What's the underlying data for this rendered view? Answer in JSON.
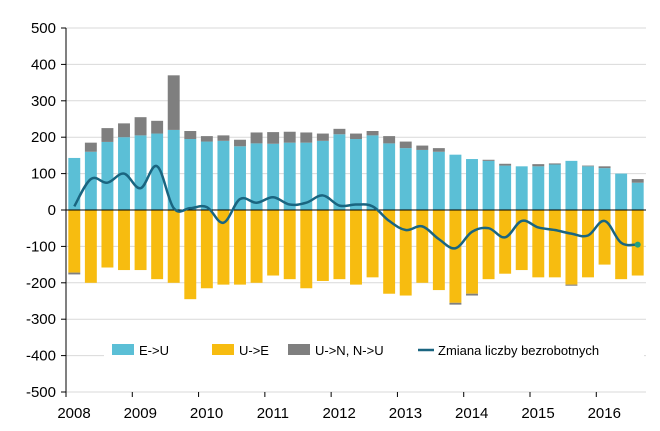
{
  "chart_data": {
    "type": "bar",
    "stacked": true,
    "x_ticks": [
      "2008",
      "2009",
      "2010",
      "2011",
      "2012",
      "2013",
      "2014",
      "2015",
      "2016"
    ],
    "y_ticks": [
      "500",
      "400",
      "300",
      "200",
      "100",
      "0",
      "-100",
      "-200",
      "-300",
      "-400",
      "-500"
    ],
    "ylim": [
      -500,
      500
    ],
    "grid": "horizontal",
    "legend_position": "bottom-inside",
    "series": [
      {
        "name": "E->U",
        "color": "#5bbfd6",
        "values": [
          143,
          160,
          187,
          200,
          205,
          210,
          220,
          195,
          188,
          190,
          175,
          183,
          182,
          185,
          185,
          190,
          208,
          195,
          205,
          183,
          170,
          165,
          160,
          152,
          140,
          135,
          122,
          120,
          120,
          125,
          135,
          120,
          115,
          100,
          75
        ]
      },
      {
        "name": "U->E",
        "color": "#f7bc10",
        "values": [
          -172,
          -200,
          -158,
          -165,
          -165,
          -190,
          -200,
          -245,
          -215,
          -205,
          -205,
          -200,
          -180,
          -190,
          -215,
          -195,
          -190,
          -205,
          -185,
          -230,
          -235,
          -200,
          -220,
          -255,
          -230,
          -190,
          -175,
          -165,
          -185,
          -185,
          -205,
          -185,
          -150,
          -190,
          -180
        ]
      },
      {
        "name": "U->N,  N->U",
        "color": "#7f7f7f",
        "values": [
          [
            0,
            -5
          ],
          [
            25,
            0
          ],
          [
            38,
            0
          ],
          [
            38,
            0
          ],
          [
            50,
            0
          ],
          [
            35,
            0
          ],
          [
            150,
            0
          ],
          [
            22,
            0
          ],
          [
            15,
            0
          ],
          [
            15,
            0
          ],
          [
            18,
            0
          ],
          [
            30,
            0
          ],
          [
            32,
            0
          ],
          [
            30,
            0
          ],
          [
            28,
            0
          ],
          [
            20,
            0
          ],
          [
            15,
            0
          ],
          [
            15,
            0
          ],
          [
            12,
            0
          ],
          [
            20,
            0
          ],
          [
            18,
            0
          ],
          [
            12,
            0
          ],
          [
            10,
            0
          ],
          [
            0,
            -5
          ],
          [
            0,
            -5
          ],
          [
            3,
            0
          ],
          [
            5,
            0
          ],
          [
            0,
            0
          ],
          [
            6,
            0
          ],
          [
            3,
            0
          ],
          [
            0,
            -3
          ],
          [
            2,
            0
          ],
          [
            5,
            0
          ],
          [
            0,
            0
          ],
          [
            10,
            0
          ]
        ]
      },
      {
        "name": "Zmiana liczby bezrobotnych",
        "color": "#1a6580",
        "type": "line",
        "values": [
          10,
          85,
          75,
          100,
          60,
          120,
          5,
          5,
          8,
          -35,
          30,
          20,
          35,
          15,
          20,
          40,
          12,
          15,
          10,
          -30,
          -55,
          -45,
          -80,
          -105,
          -60,
          -50,
          -75,
          -30,
          -48,
          -55,
          -65,
          -70,
          -30,
          -90,
          -95
        ]
      }
    ]
  }
}
